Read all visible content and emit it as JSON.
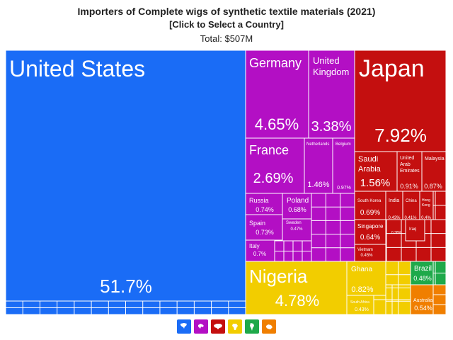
{
  "header": {
    "title": "Importers of Complete wigs of synthetic textile materials (2021)",
    "subtitle": "[Click to Select a Country]",
    "total": "Total: $507M"
  },
  "colors": {
    "north_america": "#1a6cf6",
    "europe": "#b30fc4",
    "asia": "#c40f0f",
    "africa": "#f2cd00",
    "south_america": "#1ea94a",
    "oceania": "#f07f00"
  },
  "chart_data": {
    "type": "treemap",
    "title": "Importers of Complete wigs of synthetic textile materials (2021)",
    "total": "$507M",
    "items": [
      {
        "name": "United States",
        "share": 51.7,
        "value_label": "51.7%",
        "region": "north_america"
      },
      {
        "name": "Japan",
        "share": 7.92,
        "value_label": "7.92%",
        "region": "asia"
      },
      {
        "name": "Nigeria",
        "share": 4.78,
        "value_label": "4.78%",
        "region": "africa"
      },
      {
        "name": "Germany",
        "share": 4.65,
        "value_label": "4.65%",
        "region": "europe"
      },
      {
        "name": "United Kingdom",
        "share": 3.38,
        "value_label": "3.38%",
        "region": "europe"
      },
      {
        "name": "France",
        "share": 2.69,
        "value_label": "2.69%",
        "region": "europe"
      },
      {
        "name": "Saudi Arabia",
        "share": 1.56,
        "value_label": "1.56%",
        "region": "asia"
      },
      {
        "name": "Netherlands",
        "share": 1.46,
        "value_label": "1.46%",
        "region": "europe"
      },
      {
        "name": "Belgium",
        "share": 0.97,
        "value_label": "0.97%",
        "region": "europe"
      },
      {
        "name": "United Arab Emirates",
        "share": 0.91,
        "value_label": "0.91%",
        "region": "asia"
      },
      {
        "name": "Malaysia",
        "share": 0.87,
        "value_label": "0.87%",
        "region": "asia"
      },
      {
        "name": "Ghana",
        "share": 0.82,
        "value_label": "0.82%",
        "region": "africa"
      },
      {
        "name": "Russia",
        "share": 0.74,
        "value_label": "0.74%",
        "region": "europe"
      },
      {
        "name": "Spain",
        "share": 0.73,
        "value_label": "0.73%",
        "region": "europe"
      },
      {
        "name": "Italy",
        "share": 0.7,
        "value_label": "0.7%",
        "region": "europe"
      },
      {
        "name": "South Korea",
        "share": 0.69,
        "value_label": "0.69%",
        "region": "asia"
      },
      {
        "name": "Poland",
        "share": 0.68,
        "value_label": "0.68%",
        "region": "europe"
      },
      {
        "name": "Singapore",
        "share": 0.64,
        "value_label": "0.64%",
        "region": "asia"
      },
      {
        "name": "Australia",
        "share": 0.54,
        "value_label": "0.54%",
        "region": "oceania"
      },
      {
        "name": "Brazil",
        "share": 0.48,
        "value_label": "0.48%",
        "region": "south_america"
      },
      {
        "name": "Sweden",
        "share": 0.47,
        "value_label": "0.47%",
        "region": "europe"
      },
      {
        "name": "Vietnam",
        "share": 0.45,
        "value_label": "0.45%",
        "region": "asia"
      },
      {
        "name": "India",
        "share": 0.43,
        "value_label": "0.43%",
        "region": "asia"
      },
      {
        "name": "South Africa",
        "share": 0.43,
        "value_label": "0.43%",
        "region": "africa"
      },
      {
        "name": "China",
        "share": 0.41,
        "value_label": "0.41%",
        "region": "asia"
      },
      {
        "name": "Hong Kong",
        "share": 0.4,
        "value_label": "0.4%",
        "region": "asia"
      },
      {
        "name": "Iraq",
        "share": 0.38,
        "value_label": "0.38%",
        "region": "asia"
      }
    ]
  },
  "legend": [
    {
      "region": "north_america",
      "icon": "north-america-icon"
    },
    {
      "region": "europe",
      "icon": "europe-icon"
    },
    {
      "region": "asia",
      "icon": "asia-icon"
    },
    {
      "region": "africa",
      "icon": "africa-icon"
    },
    {
      "region": "south_america",
      "icon": "south-america-icon"
    },
    {
      "region": "oceania",
      "icon": "oceania-icon"
    }
  ]
}
